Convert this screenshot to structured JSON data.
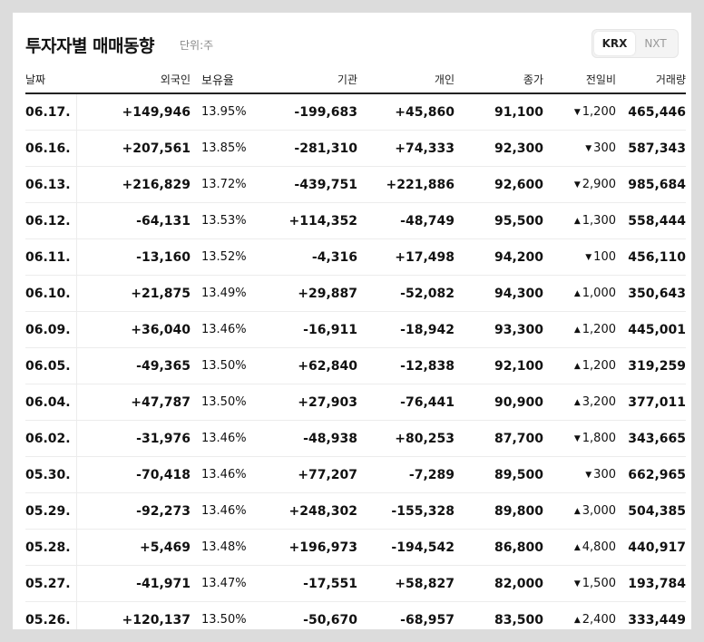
{
  "header": {
    "title": "투자자별 매매동향",
    "unit": "단위:주",
    "toggle": [
      {
        "label": "KRX",
        "active": true
      },
      {
        "label": "NXT",
        "active": false
      }
    ]
  },
  "columns": {
    "date": "날짜",
    "foreign": "외국인",
    "holding": "보유율",
    "institution": "기관",
    "individual": "개인",
    "close": "종가",
    "change": "전일비",
    "volume": "거래량"
  },
  "colors": {
    "up": "#e02d2d",
    "down": "#1f7ee0"
  },
  "rows": [
    {
      "date": "06.17.",
      "foreign": "+149,946",
      "holding": "13.95%",
      "institution": "-199,683",
      "individual": "+45,860",
      "close": "91,100",
      "dir": "down",
      "change": "1,200",
      "volume": "465,446"
    },
    {
      "date": "06.16.",
      "foreign": "+207,561",
      "holding": "13.85%",
      "institution": "-281,310",
      "individual": "+74,333",
      "close": "92,300",
      "dir": "down",
      "change": "300",
      "volume": "587,343"
    },
    {
      "date": "06.13.",
      "foreign": "+216,829",
      "holding": "13.72%",
      "institution": "-439,751",
      "individual": "+221,886",
      "close": "92,600",
      "dir": "down",
      "change": "2,900",
      "volume": "985,684"
    },
    {
      "date": "06.12.",
      "foreign": "-64,131",
      "holding": "13.53%",
      "institution": "+114,352",
      "individual": "-48,749",
      "close": "95,500",
      "dir": "up",
      "change": "1,300",
      "volume": "558,444"
    },
    {
      "date": "06.11.",
      "foreign": "-13,160",
      "holding": "13.52%",
      "institution": "-4,316",
      "individual": "+17,498",
      "close": "94,200",
      "dir": "down",
      "change": "100",
      "volume": "456,110"
    },
    {
      "date": "06.10.",
      "foreign": "+21,875",
      "holding": "13.49%",
      "institution": "+29,887",
      "individual": "-52,082",
      "close": "94,300",
      "dir": "up",
      "change": "1,000",
      "volume": "350,643"
    },
    {
      "date": "06.09.",
      "foreign": "+36,040",
      "holding": "13.46%",
      "institution": "-16,911",
      "individual": "-18,942",
      "close": "93,300",
      "dir": "up",
      "change": "1,200",
      "volume": "445,001"
    },
    {
      "date": "06.05.",
      "foreign": "-49,365",
      "holding": "13.50%",
      "institution": "+62,840",
      "individual": "-12,838",
      "close": "92,100",
      "dir": "up",
      "change": "1,200",
      "volume": "319,259"
    },
    {
      "date": "06.04.",
      "foreign": "+47,787",
      "holding": "13.50%",
      "institution": "+27,903",
      "individual": "-76,441",
      "close": "90,900",
      "dir": "up",
      "change": "3,200",
      "volume": "377,011"
    },
    {
      "date": "06.02.",
      "foreign": "-31,976",
      "holding": "13.46%",
      "institution": "-48,938",
      "individual": "+80,253",
      "close": "87,700",
      "dir": "down",
      "change": "1,800",
      "volume": "343,665"
    },
    {
      "date": "05.30.",
      "foreign": "-70,418",
      "holding": "13.46%",
      "institution": "+77,207",
      "individual": "-7,289",
      "close": "89,500",
      "dir": "down",
      "change": "300",
      "volume": "662,965"
    },
    {
      "date": "05.29.",
      "foreign": "-92,273",
      "holding": "13.46%",
      "institution": "+248,302",
      "individual": "-155,328",
      "close": "89,800",
      "dir": "up",
      "change": "3,000",
      "volume": "504,385"
    },
    {
      "date": "05.28.",
      "foreign": "+5,469",
      "holding": "13.48%",
      "institution": "+196,973",
      "individual": "-194,542",
      "close": "86,800",
      "dir": "up",
      "change": "4,800",
      "volume": "440,917"
    },
    {
      "date": "05.27.",
      "foreign": "-41,971",
      "holding": "13.47%",
      "institution": "-17,551",
      "individual": "+58,827",
      "close": "82,000",
      "dir": "down",
      "change": "1,500",
      "volume": "193,784"
    },
    {
      "date": "05.26.",
      "foreign": "+120,137",
      "holding": "13.50%",
      "institution": "-50,670",
      "individual": "-68,957",
      "close": "83,500",
      "dir": "up",
      "change": "2,400",
      "volume": "333,449"
    }
  ]
}
